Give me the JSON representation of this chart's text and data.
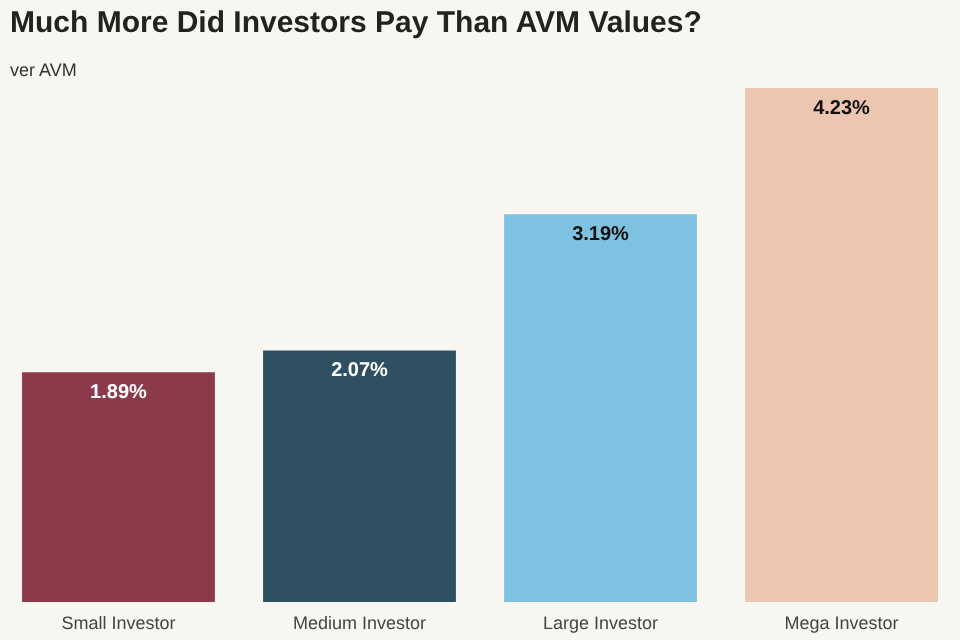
{
  "chart_data": {
    "type": "bar",
    "title": "Much More Did Investors Pay Than AVM Values?",
    "subtitle": "ver AVM",
    "categories": [
      "Small Investor",
      "Medium Investor",
      "Large Investor",
      "Mega Investor"
    ],
    "values": [
      1.89,
      2.07,
      3.19,
      4.23
    ],
    "colors": [
      "#8c3a4a",
      "#2f5060",
      "#7ec2e2",
      "#ecc6b1"
    ],
    "value_labels": [
      "1.89%",
      "2.07%",
      "3.19%",
      "4.23%"
    ]
  }
}
